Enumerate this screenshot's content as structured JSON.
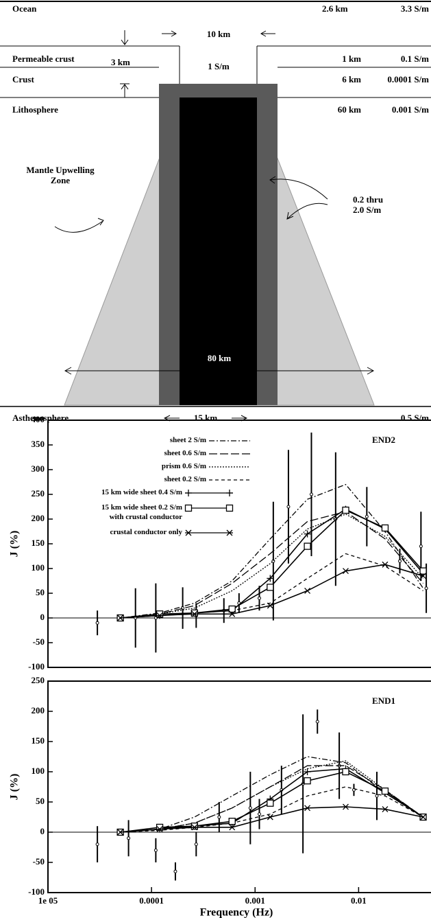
{
  "diagram": {
    "ocean": {
      "label": "Ocean",
      "thickness": "2.6 km",
      "conductivity": "3.3 S/m"
    },
    "slot_width": "10 km",
    "permeable_crust": {
      "label": "Permeable crust",
      "depth": "3 km",
      "slot_conductivity": "1 S/m",
      "thickness": "1 km",
      "conductivity": "0.1 S/m"
    },
    "crust": {
      "label": "Crust",
      "thickness": "6 km",
      "conductivity": "0.0001 S/m"
    },
    "lithosphere": {
      "label": "Lithosphere",
      "thickness": "60 km",
      "conductivity": "0.001 S/m"
    },
    "mantle_zone": "Mantle Upwelling\nZone",
    "conductor_range": "0.2 thru\n2.0 S/m",
    "zone_width": "80 km",
    "asthenosphere": {
      "label": "Asthenosphere",
      "conductor_width": "15 km",
      "conductivity": "0.5 S/m"
    }
  },
  "chart_data": [
    {
      "type": "line",
      "title": "END2",
      "ylabel": "J (%)",
      "log_x": true,
      "xlim": [
        1e-05,
        0.05
      ],
      "ylim": [
        -100,
        400
      ],
      "yticks": [
        -100,
        -50,
        0,
        50,
        100,
        150,
        200,
        250,
        300,
        350,
        400
      ],
      "x": [
        5e-05,
        0.00012,
        0.00026,
        0.0006,
        0.0014,
        0.0032,
        0.0075,
        0.018,
        0.042
      ],
      "series": [
        {
          "name": "sheet 2 S/m",
          "color": "#000000",
          "dash": "dashdot",
          "values": [
            0,
            10,
            30,
            75,
            160,
            240,
            270,
            175,
            60
          ]
        },
        {
          "name": "sheet 0.6 S/m",
          "color": "#000000",
          "dash": "longdash",
          "values": [
            0,
            8,
            25,
            70,
            130,
            195,
            215,
            160,
            70
          ]
        },
        {
          "name": "prism 0.6 S/m",
          "color": "#000000",
          "dash": "dotted",
          "values": [
            0,
            8,
            20,
            55,
            110,
            180,
            210,
            165,
            80
          ]
        },
        {
          "name": "sheet 0.2 S/m",
          "color": "#000000",
          "dash": "dashed",
          "values": [
            0,
            5,
            10,
            15,
            30,
            80,
            130,
            105,
            55
          ]
        },
        {
          "name": "15 km wide sheet 0.4 S/m",
          "color": "#000000",
          "dash": "solid",
          "marker": "plus",
          "values": [
            0,
            5,
            10,
            15,
            80,
            170,
            220,
            180,
            90
          ]
        },
        {
          "name": "15 km wide sheet 0.2 S/m\nwith crustal conductor",
          "color": "#000000",
          "dash": "solid",
          "marker": "square",
          "values": [
            0,
            8,
            10,
            18,
            62,
            145,
            218,
            182,
            95
          ]
        },
        {
          "name": "crustal conductor only",
          "color": "#000000",
          "dash": "solid",
          "marker": "x",
          "values": [
            0,
            5,
            8,
            8,
            25,
            55,
            95,
            108,
            85
          ]
        }
      ],
      "observations": {
        "x": [
          3e-05,
          7e-05,
          0.00011,
          0.0002,
          0.00027,
          0.0005,
          0.0007,
          0.0011,
          0.0015,
          0.0021,
          0.0035,
          0.006,
          0.012,
          0.025,
          0.04,
          0.045
        ],
        "values": [
          -10,
          0,
          0,
          20,
          5,
          15,
          30,
          40,
          115,
          225,
          250,
          200,
          205,
          115,
          145,
          60
        ],
        "errors": [
          25,
          60,
          70,
          42,
          25,
          25,
          20,
          25,
          120,
          115,
          125,
          135,
          60,
          25,
          70,
          50
        ]
      }
    },
    {
      "type": "line",
      "title": "END1",
      "ylabel": "J (%)",
      "xlabel": "Frequency (Hz)",
      "log_x": true,
      "xlim": [
        1e-05,
        0.05
      ],
      "ylim": [
        -100,
        250
      ],
      "xticks": [
        {
          "value": 1e-05,
          "label": "1e 05"
        },
        0.0001,
        0.001,
        0.01
      ],
      "yticks": [
        -100,
        -50,
        0,
        50,
        100,
        150,
        200,
        250
      ],
      "x": [
        5e-05,
        0.00012,
        0.00026,
        0.0006,
        0.0014,
        0.0032,
        0.0075,
        0.018,
        0.042
      ],
      "series": [
        {
          "name": "sheet 2 S/m",
          "color": "#000000",
          "dash": "dashdot",
          "values": [
            0,
            5,
            25,
            60,
            95,
            125,
            115,
            65,
            25
          ]
        },
        {
          "name": "sheet 0.6 S/m",
          "color": "#000000",
          "dash": "longdash",
          "values": [
            0,
            5,
            15,
            40,
            75,
            110,
            110,
            70,
            25
          ]
        },
        {
          "name": "prism 0.6 S/m",
          "color": "#000000",
          "dash": "dotted",
          "values": [
            0,
            5,
            15,
            40,
            75,
            105,
            118,
            70,
            25
          ]
        },
        {
          "name": "sheet 0.2 S/m",
          "color": "#000000",
          "dash": "dashed",
          "values": [
            0,
            3,
            8,
            15,
            30,
            60,
            75,
            60,
            25
          ]
        },
        {
          "name": "15 km wide sheet 0.4 S/m",
          "color": "#000000",
          "dash": "solid",
          "marker": "plus",
          "values": [
            0,
            5,
            10,
            15,
            55,
            100,
            105,
            65,
            25
          ]
        },
        {
          "name": "15 km wide sheet 0.2 S/m\nwith crustal conductor",
          "color": "#000000",
          "dash": "solid",
          "marker": "square",
          "values": [
            0,
            8,
            10,
            18,
            48,
            85,
            100,
            68,
            25
          ]
        },
        {
          "name": "crustal conductor only",
          "color": "#000000",
          "dash": "solid",
          "marker": "x",
          "values": [
            0,
            5,
            8,
            8,
            25,
            40,
            42,
            38,
            25
          ]
        }
      ],
      "observations": {
        "x": [
          3e-05,
          6e-05,
          0.00011,
          0.00017,
          0.00027,
          0.00045,
          0.0009,
          0.0011,
          0.0018,
          0.0029,
          0.004,
          0.0065,
          0.009,
          0.015
        ],
        "values": [
          -20,
          -10,
          -30,
          -65,
          -20,
          25,
          40,
          30,
          70,
          80,
          183,
          110,
          70,
          60
        ],
        "errors": [
          30,
          30,
          20,
          15,
          20,
          25,
          60,
          25,
          40,
          115,
          20,
          55,
          10,
          40
        ]
      }
    }
  ]
}
